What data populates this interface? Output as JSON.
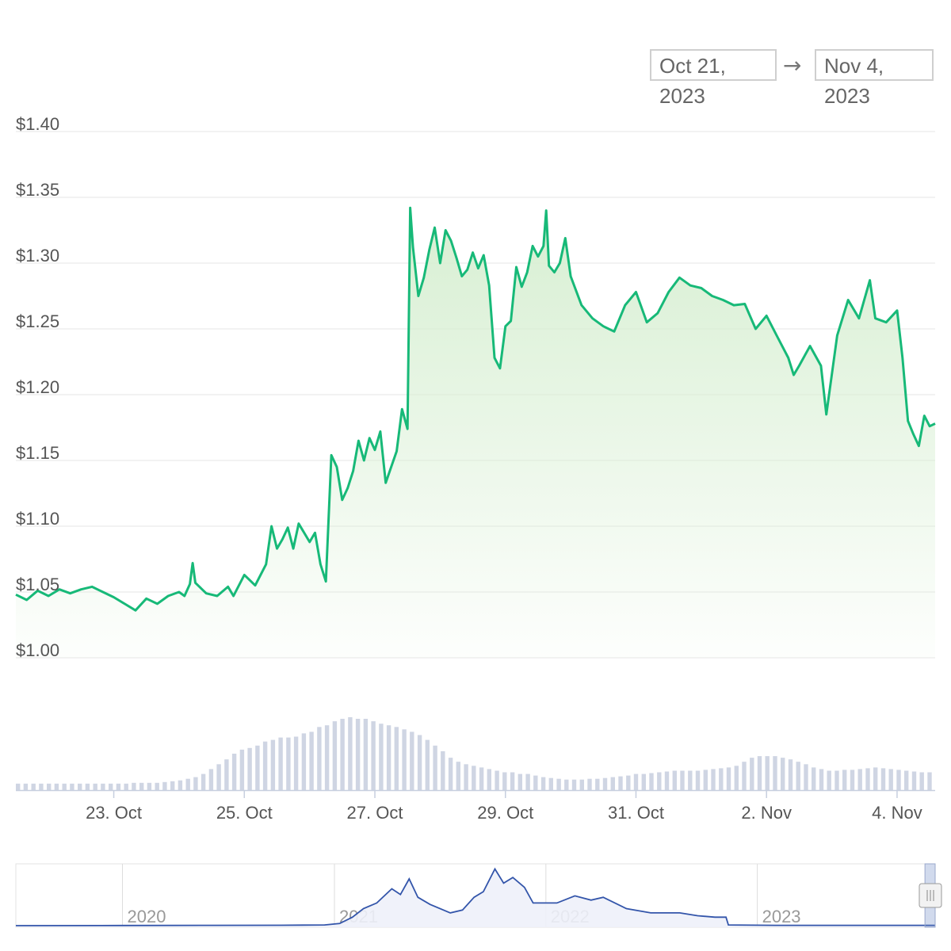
{
  "range_selector": {
    "from": "Oct 21, 2023",
    "arrow": "→",
    "to": "Nov 4, 2023"
  },
  "colors": {
    "price_line": "#17b978",
    "price_fill_top": "#d7efd2",
    "volume_bar": "#cfd5e3",
    "navigator_line": "#3355aa",
    "navigator_fill": "#eef1fa",
    "grid": "#eeeeee",
    "label": "#555555"
  },
  "chart_data": [
    {
      "type": "area",
      "name": "price",
      "y_ticks": [
        "$1.00",
        "$1.05",
        "$1.10",
        "$1.15",
        "$1.20",
        "$1.25",
        "$1.30",
        "$1.35",
        "$1.40"
      ],
      "ylim": [
        1.0,
        1.4
      ],
      "xlim": [
        "2023-10-21T12:00",
        "2023-11-04T14:00"
      ],
      "x_ticks": [
        "23. Oct",
        "25. Oct",
        "27. Oct",
        "29. Oct",
        "31. Oct",
        "2. Nov",
        "4. Nov"
      ],
      "x_tick_dates": [
        "2023-10-23",
        "2023-10-25",
        "2023-10-27",
        "2023-10-29",
        "2023-10-31",
        "2023-11-02",
        "2023-11-04"
      ],
      "grid": true,
      "points": [
        [
          "2023-10-21T12:00",
          1.048
        ],
        [
          "2023-10-21T16:00",
          1.044
        ],
        [
          "2023-10-21T20:00",
          1.051
        ],
        [
          "2023-10-22T00:00",
          1.047
        ],
        [
          "2023-10-22T04:00",
          1.052
        ],
        [
          "2023-10-22T08:00",
          1.049
        ],
        [
          "2023-10-22T12:00",
          1.052
        ],
        [
          "2023-10-22T16:00",
          1.054
        ],
        [
          "2023-10-22T20:00",
          1.05
        ],
        [
          "2023-10-23T00:00",
          1.046
        ],
        [
          "2023-10-23T04:00",
          1.041
        ],
        [
          "2023-10-23T08:00",
          1.036
        ],
        [
          "2023-10-23T12:00",
          1.045
        ],
        [
          "2023-10-23T16:00",
          1.041
        ],
        [
          "2023-10-23T20:00",
          1.047
        ],
        [
          "2023-10-24T00:00",
          1.05
        ],
        [
          "2023-10-24T02:00",
          1.047
        ],
        [
          "2023-10-24T04:00",
          1.056
        ],
        [
          "2023-10-24T05:00",
          1.072
        ],
        [
          "2023-10-24T06:00",
          1.057
        ],
        [
          "2023-10-24T10:00",
          1.049
        ],
        [
          "2023-10-24T14:00",
          1.047
        ],
        [
          "2023-10-24T18:00",
          1.054
        ],
        [
          "2023-10-24T20:00",
          1.047
        ],
        [
          "2023-10-25T00:00",
          1.063
        ],
        [
          "2023-10-25T04:00",
          1.055
        ],
        [
          "2023-10-25T08:00",
          1.071
        ],
        [
          "2023-10-25T10:00",
          1.1
        ],
        [
          "2023-10-25T12:00",
          1.083
        ],
        [
          "2023-10-25T14:00",
          1.09
        ],
        [
          "2023-10-25T16:00",
          1.099
        ],
        [
          "2023-10-25T18:00",
          1.083
        ],
        [
          "2023-10-25T20:00",
          1.102
        ],
        [
          "2023-10-26T00:00",
          1.088
        ],
        [
          "2023-10-26T02:00",
          1.095
        ],
        [
          "2023-10-26T04:00",
          1.071
        ],
        [
          "2023-10-26T06:00",
          1.058
        ],
        [
          "2023-10-26T08:00",
          1.154
        ],
        [
          "2023-10-26T10:00",
          1.145
        ],
        [
          "2023-10-26T12:00",
          1.12
        ],
        [
          "2023-10-26T14:00",
          1.129
        ],
        [
          "2023-10-26T16:00",
          1.142
        ],
        [
          "2023-10-26T18:00",
          1.165
        ],
        [
          "2023-10-26T20:00",
          1.15
        ],
        [
          "2023-10-26T22:00",
          1.167
        ],
        [
          "2023-10-27T00:00",
          1.158
        ],
        [
          "2023-10-27T02:00",
          1.172
        ],
        [
          "2023-10-27T04:00",
          1.133
        ],
        [
          "2023-10-27T06:00",
          1.145
        ],
        [
          "2023-10-27T08:00",
          1.157
        ],
        [
          "2023-10-27T10:00",
          1.189
        ],
        [
          "2023-10-27T12:00",
          1.174
        ],
        [
          "2023-10-27T13:00",
          1.342
        ],
        [
          "2023-10-27T14:00",
          1.312
        ],
        [
          "2023-10-27T16:00",
          1.275
        ],
        [
          "2023-10-27T18:00",
          1.289
        ],
        [
          "2023-10-27T20:00",
          1.31
        ],
        [
          "2023-10-27T22:00",
          1.327
        ],
        [
          "2023-10-28T00:00",
          1.3
        ],
        [
          "2023-10-28T02:00",
          1.325
        ],
        [
          "2023-10-28T04:00",
          1.317
        ],
        [
          "2023-10-28T06:00",
          1.304
        ],
        [
          "2023-10-28T08:00",
          1.29
        ],
        [
          "2023-10-28T10:00",
          1.295
        ],
        [
          "2023-10-28T12:00",
          1.308
        ],
        [
          "2023-10-28T14:00",
          1.296
        ],
        [
          "2023-10-28T16:00",
          1.306
        ],
        [
          "2023-10-28T18:00",
          1.283
        ],
        [
          "2023-10-28T20:00",
          1.228
        ],
        [
          "2023-10-28T22:00",
          1.22
        ],
        [
          "2023-10-29T00:00",
          1.252
        ],
        [
          "2023-10-29T02:00",
          1.256
        ],
        [
          "2023-10-29T04:00",
          1.297
        ],
        [
          "2023-10-29T06:00",
          1.282
        ],
        [
          "2023-10-29T08:00",
          1.293
        ],
        [
          "2023-10-29T10:00",
          1.313
        ],
        [
          "2023-10-29T12:00",
          1.305
        ],
        [
          "2023-10-29T14:00",
          1.313
        ],
        [
          "2023-10-29T15:00",
          1.34
        ],
        [
          "2023-10-29T16:00",
          1.298
        ],
        [
          "2023-10-29T18:00",
          1.293
        ],
        [
          "2023-10-29T20:00",
          1.3
        ],
        [
          "2023-10-29T22:00",
          1.319
        ],
        [
          "2023-10-30T00:00",
          1.29
        ],
        [
          "2023-10-30T04:00",
          1.268
        ],
        [
          "2023-10-30T08:00",
          1.258
        ],
        [
          "2023-10-30T12:00",
          1.252
        ],
        [
          "2023-10-30T16:00",
          1.248
        ],
        [
          "2023-10-30T20:00",
          1.268
        ],
        [
          "2023-10-31T00:00",
          1.278
        ],
        [
          "2023-10-31T04:00",
          1.255
        ],
        [
          "2023-10-31T08:00",
          1.262
        ],
        [
          "2023-10-31T12:00",
          1.278
        ],
        [
          "2023-10-31T16:00",
          1.289
        ],
        [
          "2023-10-31T20:00",
          1.283
        ],
        [
          "2023-11-01T00:00",
          1.281
        ],
        [
          "2023-11-01T04:00",
          1.275
        ],
        [
          "2023-11-01T08:00",
          1.272
        ],
        [
          "2023-11-01T12:00",
          1.268
        ],
        [
          "2023-11-01T16:00",
          1.269
        ],
        [
          "2023-11-01T20:00",
          1.25
        ],
        [
          "2023-11-02T00:00",
          1.26
        ],
        [
          "2023-11-02T04:00",
          1.244
        ],
        [
          "2023-11-02T08:00",
          1.228
        ],
        [
          "2023-11-02T10:00",
          1.215
        ],
        [
          "2023-11-02T12:00",
          1.222
        ],
        [
          "2023-11-02T16:00",
          1.237
        ],
        [
          "2023-11-02T20:00",
          1.222
        ],
        [
          "2023-11-02T22:00",
          1.185
        ],
        [
          "2023-11-03T02:00",
          1.245
        ],
        [
          "2023-11-03T06:00",
          1.272
        ],
        [
          "2023-11-03T10:00",
          1.258
        ],
        [
          "2023-11-03T14:00",
          1.287
        ],
        [
          "2023-11-03T16:00",
          1.258
        ],
        [
          "2023-11-03T20:00",
          1.255
        ],
        [
          "2023-11-04T00:00",
          1.264
        ],
        [
          "2023-11-04T02:00",
          1.228
        ],
        [
          "2023-11-04T04:00",
          1.18
        ],
        [
          "2023-11-04T06:00",
          1.17
        ],
        [
          "2023-11-04T08:00",
          1.161
        ],
        [
          "2023-11-04T10:00",
          1.184
        ],
        [
          "2023-11-04T12:00",
          1.176
        ],
        [
          "2023-11-04T14:00",
          1.178
        ]
      ]
    },
    {
      "type": "bar",
      "name": "volume",
      "values": [
        8,
        8,
        8,
        8,
        8,
        8,
        8,
        8,
        8,
        8,
        8,
        8,
        8,
        8,
        8,
        9,
        9,
        9,
        9,
        10,
        11,
        12,
        14,
        16,
        20,
        26,
        32,
        38,
        45,
        50,
        52,
        55,
        60,
        62,
        65,
        65,
        66,
        70,
        72,
        78,
        80,
        85,
        88,
        90,
        88,
        88,
        85,
        82,
        80,
        78,
        75,
        72,
        68,
        62,
        55,
        48,
        40,
        35,
        32,
        30,
        28,
        26,
        24,
        22,
        22,
        20,
        20,
        18,
        16,
        15,
        14,
        13,
        13,
        13,
        14,
        14,
        15,
        16,
        17,
        18,
        20,
        20,
        21,
        22,
        23,
        24,
        24,
        24,
        24,
        25,
        26,
        27,
        28,
        30,
        35,
        40,
        42,
        42,
        42,
        40,
        38,
        35,
        32,
        28,
        26,
        24,
        24,
        25,
        25,
        26,
        27,
        28,
        27,
        26,
        25,
        24,
        23,
        22,
        22
      ]
    },
    {
      "type": "line",
      "name": "navigator",
      "x_ticks": [
        "2020",
        "2021",
        "2022",
        "2023"
      ],
      "x_tick_dates": [
        "2020-01-01",
        "2021-01-01",
        "2022-01-01",
        "2023-01-01"
      ],
      "xlim": [
        "2019-07-01",
        "2023-11-04"
      ],
      "points": [
        [
          "2019-07-01",
          1.0
        ],
        [
          "2020-01-01",
          1.01
        ],
        [
          "2020-06-01",
          1.02
        ],
        [
          "2020-10-01",
          1.03
        ],
        [
          "2020-12-15",
          1.05
        ],
        [
          "2021-01-10",
          1.15
        ],
        [
          "2021-02-01",
          1.6
        ],
        [
          "2021-02-20",
          2.2
        ],
        [
          "2021-03-15",
          2.6
        ],
        [
          "2021-04-10",
          3.6
        ],
        [
          "2021-04-25",
          3.2
        ],
        [
          "2021-05-10",
          4.3
        ],
        [
          "2021-05-25",
          3.0
        ],
        [
          "2021-06-15",
          2.5
        ],
        [
          "2021-07-20",
          1.9
        ],
        [
          "2021-08-10",
          2.1
        ],
        [
          "2021-08-30",
          3.0
        ],
        [
          "2021-09-15",
          3.4
        ],
        [
          "2021-10-05",
          5.0
        ],
        [
          "2021-10-20",
          4.0
        ],
        [
          "2021-11-05",
          4.4
        ],
        [
          "2021-11-25",
          3.7
        ],
        [
          "2021-12-10",
          2.6
        ],
        [
          "2021-12-31",
          2.6
        ],
        [
          "2022-01-20",
          2.6
        ],
        [
          "2022-02-20",
          3.1
        ],
        [
          "2022-03-20",
          2.8
        ],
        [
          "2022-04-10",
          3.0
        ],
        [
          "2022-05-20",
          2.2
        ],
        [
          "2022-07-01",
          1.9
        ],
        [
          "2022-08-20",
          1.9
        ],
        [
          "2022-09-20",
          1.7
        ],
        [
          "2022-10-20",
          1.6
        ],
        [
          "2022-11-08",
          1.6
        ],
        [
          "2022-11-12",
          1.05
        ],
        [
          "2023-02-01",
          1.02
        ],
        [
          "2023-05-01",
          1.02
        ],
        [
          "2023-08-01",
          1.02
        ],
        [
          "2023-11-04",
          1.02
        ]
      ]
    }
  ]
}
